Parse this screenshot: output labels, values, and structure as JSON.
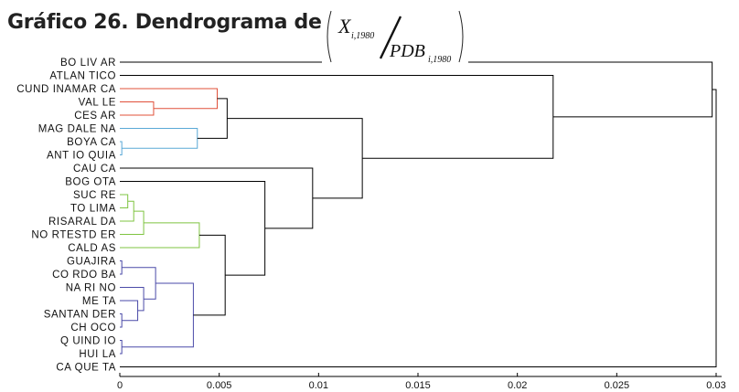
{
  "title": "Gráfico 26. Dendrograma de",
  "formula": {
    "numerator_var": "X",
    "numerator_sub": "i,1980",
    "denominator_var": "PDB",
    "denominator_sub": "i,1980"
  },
  "chart_data": {
    "type": "dendrogram",
    "orientation": "horizontal",
    "xlim": [
      0,
      0.03
    ],
    "x_ticks": [
      0,
      0.005,
      0.01,
      0.015,
      0.02,
      0.025,
      0.03
    ],
    "x_tick_labels": [
      "0",
      "0.005",
      "0.01",
      "0.015",
      "0.02",
      "0.025",
      "0.03"
    ],
    "leaves": [
      "BOLIVAR",
      "ATLANTICO",
      "CUNDINAMARCA",
      "VALLE",
      "CESAR",
      "MAGDALENA",
      "BOYACA",
      "ANTIOQUIA",
      "CAUCA",
      "BOGOTA",
      "SUCRE",
      "TOLIMA",
      "RISARALDA",
      "NORTESTDER",
      "CALDAS",
      "GUAJIRA",
      "CORDOBA",
      "NARINO",
      "META",
      "SANTANDER",
      "CHOCO",
      "QUINDIO",
      "HUILA",
      "CAQUETA"
    ],
    "leaf_labels": [
      "BO LIV AR",
      "ATLAN TICO",
      "CUND INAMAR CA",
      "VAL LE",
      "CES AR",
      "MAG DALE NA",
      "BOYA CA",
      "ANT IO QUIA",
      "CAU CA",
      "BOG OTA",
      "SUC RE",
      "TO LIMA",
      "RISARAL DA",
      "NO RTESTD ER",
      "CALD AS",
      "GUAJIRA",
      "CO RDO BA",
      "NA RI NO",
      "ME TA",
      "SANTAN DER",
      "CH OCO",
      "Q UIND IO",
      "HUI LA",
      "CA QUE TA"
    ],
    "merges": [
      {
        "a": "ANTIOQUIA",
        "b": "BOYACA",
        "height": 0.0001,
        "color": "#5aa9d6"
      },
      {
        "a": "VALLE",
        "b": "CESAR",
        "height": 0.0017,
        "color": "#e0503a"
      },
      {
        "a": "c1",
        "b": "MAGDALENA",
        "height": 0.0039,
        "color": "#5aa9d6"
      },
      {
        "a": "CUNDINAMARCA",
        "b": "c2",
        "height": 0.0049,
        "color": "#e0503a"
      },
      {
        "a": "c4",
        "b": "c3",
        "height": 0.0054,
        "color": "#000000"
      },
      {
        "a": "SUCRE",
        "b": "TOLIMA",
        "height": 0.0004,
        "color": "#7fc441"
      },
      {
        "a": "c6",
        "b": "RISARALDA",
        "height": 0.0007,
        "color": "#7fc441"
      },
      {
        "a": "NORTESTDER",
        "b": "c7",
        "height": 0.0012,
        "color": "#7fc441"
      },
      {
        "a": "c8",
        "b": "CALDAS",
        "height": 0.004,
        "color": "#7fc441"
      },
      {
        "a": "HUILA",
        "b": "QUINDIO",
        "height": 0.0001,
        "color": "#4a4aa8"
      },
      {
        "a": "GUAJIRA",
        "b": "CORDOBA",
        "height": 0.0001,
        "color": "#4a4aa8"
      },
      {
        "a": "SANTANDER",
        "b": "CHOCO",
        "height": 0.0001,
        "color": "#4a4aa8"
      },
      {
        "a": "META",
        "b": "c12",
        "height": 0.0009,
        "color": "#4a4aa8"
      },
      {
        "a": "NARINO",
        "b": "c13",
        "height": 0.0012,
        "color": "#4a4aa8"
      },
      {
        "a": "c11",
        "b": "c14",
        "height": 0.0018,
        "color": "#4a4aa8"
      },
      {
        "a": "c15",
        "b": "c10",
        "height": 0.0037,
        "color": "#4a4aa8"
      },
      {
        "a": "c9",
        "b": "c16",
        "height": 0.0053,
        "color": "#000000"
      },
      {
        "a": "BOGOTA",
        "b": "c17",
        "height": 0.0073,
        "color": "#000000"
      },
      {
        "a": "CAUCA",
        "b": "c18",
        "height": 0.0097,
        "color": "#000000"
      },
      {
        "a": "c5",
        "b": "c19",
        "height": 0.0122,
        "color": "#000000"
      },
      {
        "a": "ATLANTICO",
        "b": "c20",
        "height": 0.0218,
        "color": "#000000"
      },
      {
        "a": "BOLIVAR",
        "b": "c21",
        "height": 0.0298,
        "color": "#000000"
      },
      {
        "a": "c22",
        "b": "CAQUETA",
        "height": 0.03,
        "color": "#000000"
      }
    ]
  }
}
